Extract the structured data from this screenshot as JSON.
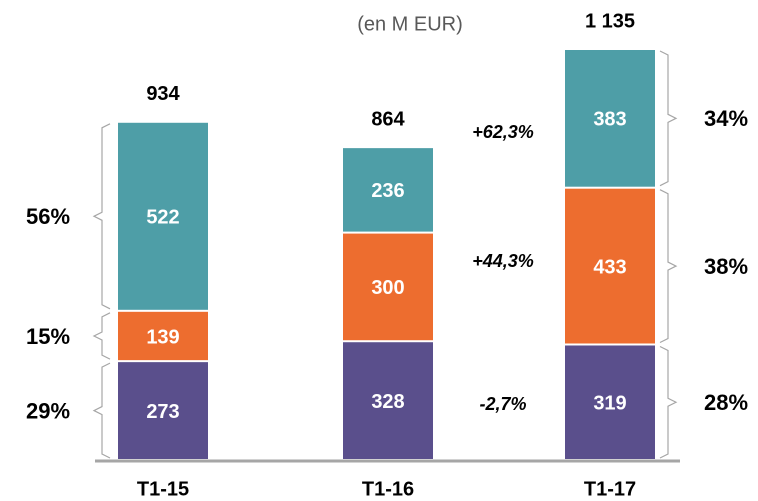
{
  "chart_data": {
    "type": "stacked_bar",
    "subtitle": "(en M EUR)",
    "categories": [
      "T1-15",
      "T1-16",
      "T1-17"
    ],
    "series": [
      {
        "color": "#5a4f8c",
        "values": [
          273,
          328,
          319
        ]
      },
      {
        "color": "#ed6d2f",
        "values": [
          139,
          300,
          433
        ]
      },
      {
        "color": "#4e9ea7",
        "values": [
          522,
          236,
          383
        ]
      }
    ],
    "totals": [
      934,
      864,
      1135
    ],
    "total_labels": [
      "934",
      "864",
      "1 135"
    ],
    "shares_first": {
      "values": [
        29,
        15,
        56
      ],
      "value_labels": [
        "29%",
        "15%",
        "56%"
      ]
    },
    "shares_last": {
      "values": [
        28,
        38,
        34
      ],
      "value_labels": [
        "28%",
        "38%",
        "34%"
      ]
    },
    "growth": {
      "values": [
        -2.7,
        44.3,
        62.3
      ],
      "value_labels": [
        "-2,7%",
        "+44,3%",
        "+62,3%"
      ]
    }
  }
}
